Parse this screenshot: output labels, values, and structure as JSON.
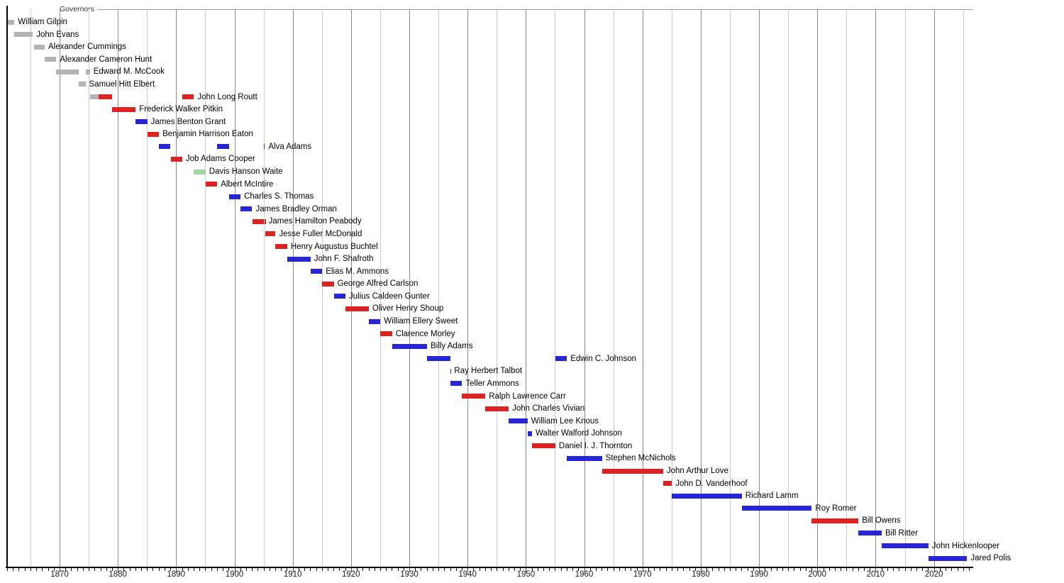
{
  "chart_data": {
    "type": "bar",
    "subtype": "timeline-gantt",
    "title": "Governors",
    "xlabel": "",
    "ylabel": "",
    "grid": "vertical, every 5 years, darker at decades",
    "legend": "none",
    "party_colors": {
      "territorial": "#b3b3b3",
      "republican": "#dd2222",
      "democratic": "#2626d6",
      "populist": "#a0d6a0"
    },
    "x_axis": {
      "unit": "year",
      "min": 1861,
      "max": 2026.5,
      "minor_tick_step": 1,
      "gridline_step": 5,
      "major_tick_step": 10,
      "tick_labels": [
        "1870",
        "1880",
        "1890",
        "1900",
        "1910",
        "1920",
        "1930",
        "1940",
        "1950",
        "1960",
        "1970",
        "1980",
        "1990",
        "2000",
        "2010",
        "2020"
      ]
    },
    "rows": [
      {
        "label": "William Gilpin",
        "party": "territorial",
        "terms": [
          [
            1861.05,
            1862.25
          ]
        ]
      },
      {
        "label": "John Evans",
        "party": "territorial",
        "terms": [
          [
            1862.25,
            1865.4
          ]
        ]
      },
      {
        "label": "Alexander Cummings",
        "party": "territorial",
        "terms": [
          [
            1865.6,
            1867.45
          ]
        ]
      },
      {
        "label": "Alexander Cameron Hunt",
        "party": "territorial",
        "terms": [
          [
            1867.45,
            1869.45
          ]
        ]
      },
      {
        "label": "Edward M. McCook",
        "party": "territorial",
        "terms": [
          [
            1869.45,
            1873.3
          ],
          [
            1874.45,
            1875.2
          ]
        ]
      },
      {
        "label": "Samuel Hitt Elbert",
        "party": "territorial",
        "terms": [
          [
            1873.3,
            1874.45
          ]
        ]
      },
      {
        "label": "John Long Routt",
        "party": "republican",
        "terms": [
          [
            1875.2,
            1876.65,
            "territorial"
          ],
          [
            1876.65,
            1879.05
          ],
          [
            1891.05,
            1893.05
          ]
        ]
      },
      {
        "label": "Frederick Walker Pitkin",
        "party": "republican",
        "terms": [
          [
            1879.05,
            1883.05
          ]
        ]
      },
      {
        "label": "James Benton Grant",
        "party": "democratic",
        "terms": [
          [
            1883.05,
            1885.05
          ]
        ]
      },
      {
        "label": "Benjamin Harrison Eaton",
        "party": "republican",
        "terms": [
          [
            1885.05,
            1887.05
          ]
        ]
      },
      {
        "label": "Alva Adams",
        "party": "democratic",
        "terms": [
          [
            1887.05,
            1889.05
          ],
          [
            1897.05,
            1899.05
          ],
          [
            1905.03,
            1905.22
          ]
        ]
      },
      {
        "label": "Job Adams Cooper",
        "party": "republican",
        "terms": [
          [
            1889.05,
            1891.05
          ]
        ]
      },
      {
        "label": "Davis Hanson Waite",
        "party": "populist",
        "terms": [
          [
            1893.05,
            1895.05
          ]
        ]
      },
      {
        "label": "Albert McIntire",
        "party": "republican",
        "terms": [
          [
            1895.05,
            1897.05
          ]
        ]
      },
      {
        "label": "Charles S. Thomas",
        "party": "democratic",
        "terms": [
          [
            1899.05,
            1901.05
          ]
        ]
      },
      {
        "label": "James Bradley Orman",
        "party": "democratic",
        "terms": [
          [
            1901.05,
            1903.05
          ]
        ]
      },
      {
        "label": "James Hamilton Peabody",
        "party": "republican",
        "terms": [
          [
            1903.05,
            1905.03
          ],
          [
            1905.2,
            1905.25
          ]
        ]
      },
      {
        "label": "Jesse Fuller McDonald",
        "party": "republican",
        "terms": [
          [
            1905.25,
            1907.05
          ]
        ]
      },
      {
        "label": "Henry Augustus Buchtel",
        "party": "republican",
        "terms": [
          [
            1907.05,
            1909.05
          ]
        ]
      },
      {
        "label": "John F. Shafroth",
        "party": "democratic",
        "terms": [
          [
            1909.05,
            1913.05
          ]
        ]
      },
      {
        "label": "Elias M. Ammons",
        "party": "democratic",
        "terms": [
          [
            1913.05,
            1915.05
          ]
        ]
      },
      {
        "label": "George Alfred Carlson",
        "party": "republican",
        "terms": [
          [
            1915.05,
            1917.05
          ]
        ]
      },
      {
        "label": "Julius Caldeen Gunter",
        "party": "democratic",
        "terms": [
          [
            1917.05,
            1919.05
          ]
        ]
      },
      {
        "label": "Oliver Henry Shoup",
        "party": "republican",
        "terms": [
          [
            1919.05,
            1923.05
          ]
        ]
      },
      {
        "label": "William Ellery Sweet",
        "party": "democratic",
        "terms": [
          [
            1923.05,
            1925.05
          ]
        ]
      },
      {
        "label": "Clarence Morley",
        "party": "republican",
        "terms": [
          [
            1925.05,
            1927.05
          ]
        ]
      },
      {
        "label": "Billy Adams",
        "party": "democratic",
        "terms": [
          [
            1927.05,
            1933.05
          ]
        ]
      },
      {
        "label": "Edwin C. Johnson",
        "party": "democratic",
        "terms": [
          [
            1933.05,
            1937.0
          ],
          [
            1955.05,
            1957.05
          ]
        ]
      },
      {
        "label": "Ray Herbert Talbot",
        "party": "democratic",
        "terms": [
          [
            1937.0,
            1937.1
          ]
        ]
      },
      {
        "label": "Teller Ammons",
        "party": "democratic",
        "terms": [
          [
            1937.1,
            1939.05
          ]
        ]
      },
      {
        "label": "Ralph Lawrence Carr",
        "party": "republican",
        "terms": [
          [
            1939.05,
            1943.05
          ]
        ]
      },
      {
        "label": "John Charles Vivian",
        "party": "republican",
        "terms": [
          [
            1943.05,
            1947.05
          ]
        ]
      },
      {
        "label": "William Lee Knous",
        "party": "democratic",
        "terms": [
          [
            1947.05,
            1950.3
          ]
        ]
      },
      {
        "label": "Walter Walford Johnson",
        "party": "democratic",
        "terms": [
          [
            1950.3,
            1951.05
          ]
        ]
      },
      {
        "label": "Daniel I. J. Thornton",
        "party": "republican",
        "terms": [
          [
            1951.05,
            1955.05
          ]
        ]
      },
      {
        "label": "Stephen McNichols",
        "party": "democratic",
        "terms": [
          [
            1957.05,
            1963.05
          ]
        ]
      },
      {
        "label": "John Arthur Love",
        "party": "republican",
        "terms": [
          [
            1963.05,
            1973.55
          ]
        ]
      },
      {
        "label": "John D. Vanderhoof",
        "party": "republican",
        "terms": [
          [
            1973.55,
            1975.05
          ]
        ]
      },
      {
        "label": "Richard Lamm",
        "party": "democratic",
        "terms": [
          [
            1975.05,
            1987.05
          ]
        ]
      },
      {
        "label": "Roy Romer",
        "party": "democratic",
        "terms": [
          [
            1987.05,
            1999.05
          ]
        ]
      },
      {
        "label": "Bill Owens",
        "party": "republican",
        "terms": [
          [
            1999.05,
            2007.05
          ]
        ]
      },
      {
        "label": "Bill Ritter",
        "party": "democratic",
        "terms": [
          [
            2007.05,
            2011.05
          ]
        ]
      },
      {
        "label": "John Hickenlooper",
        "party": "democratic",
        "terms": [
          [
            2011.05,
            2019.05
          ]
        ]
      },
      {
        "label": "Jared Polis",
        "party": "democratic",
        "terms": [
          [
            2019.05,
            2025.7
          ]
        ]
      }
    ]
  }
}
